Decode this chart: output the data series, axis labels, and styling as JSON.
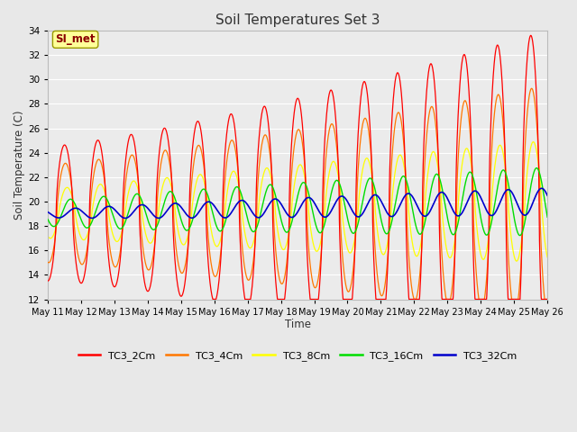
{
  "title": "Soil Temperatures Set 3",
  "xlabel": "Time",
  "ylabel": "Soil Temperature (C)",
  "ylim": [
    12,
    34
  ],
  "yticks": [
    12,
    14,
    16,
    18,
    20,
    22,
    24,
    26,
    28,
    30,
    32,
    34
  ],
  "xtick_labels": [
    "May 11",
    "May 12",
    "May 13",
    "May 14",
    "May 15",
    "May 16",
    "May 17",
    "May 18",
    "May 19",
    "May 20",
    "May 21",
    "May 22",
    "May 23",
    "May 24",
    "May 25",
    "May 26"
  ],
  "series_colors": {
    "TC3_2Cm": "#FF0000",
    "TC3_4Cm": "#FF7700",
    "TC3_8Cm": "#FFFF00",
    "TC3_16Cm": "#00DD00",
    "TC3_32Cm": "#0000CC"
  },
  "legend_label": "SI_met",
  "bg_color": "#E8E8E8",
  "plot_bg": "#EBEBEB",
  "grid_color": "#FFFFFF"
}
